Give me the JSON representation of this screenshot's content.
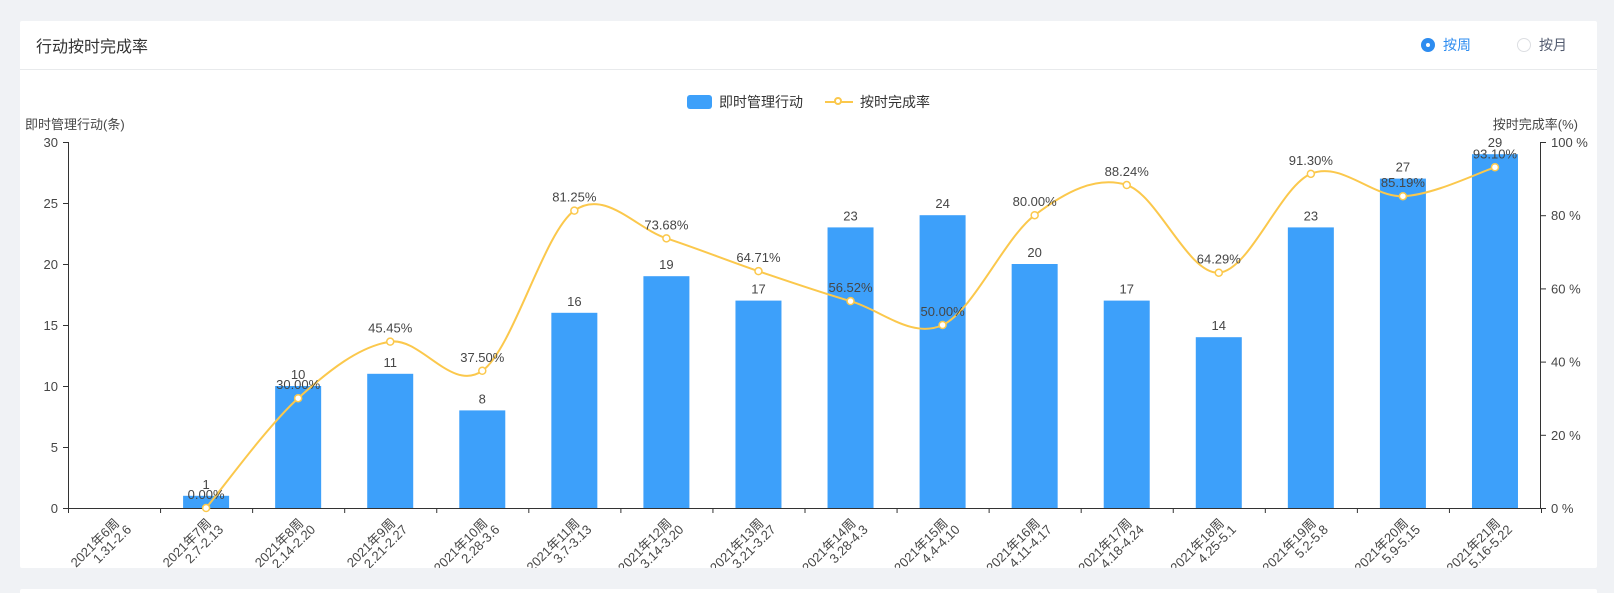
{
  "card": {
    "title": "行动按时完成率",
    "toggle": {
      "accent": "#2d8cf0",
      "options": [
        {
          "label": "按周",
          "selected": true
        },
        {
          "label": "按月",
          "selected": false
        }
      ]
    }
  },
  "chart_data": {
    "type": "bar",
    "title": "行动按时完成率",
    "categories": [
      [
        "2021年6周",
        "1.31-2.6"
      ],
      [
        "2021年7周",
        "2.7-2.13"
      ],
      [
        "2021年8周",
        "2.14-2.20"
      ],
      [
        "2021年9周",
        "2.21-2.27"
      ],
      [
        "2021年10周",
        "2.28-3.6"
      ],
      [
        "2021年11周",
        "3.7-3.13"
      ],
      [
        "2021年12周",
        "3.14-3.20"
      ],
      [
        "2021年13周",
        "3.21-3.27"
      ],
      [
        "2021年14周",
        "3.28-4.3"
      ],
      [
        "2021年15周",
        "4.4-4.10"
      ],
      [
        "2021年16周",
        "4.11-4.17"
      ],
      [
        "2021年17周",
        "4.18-4.24"
      ],
      [
        "2021年18周",
        "4.25-5.1"
      ],
      [
        "2021年19周",
        "5.2-5.8"
      ],
      [
        "2021年20周",
        "5.9-5.15"
      ],
      [
        "2021年21周",
        "5.16-5.22"
      ]
    ],
    "series": [
      {
        "name": "即时管理行动",
        "type": "bar",
        "color": "#3da0fa",
        "values": [
          null,
          1,
          10,
          11,
          8,
          16,
          19,
          17,
          23,
          24,
          20,
          17,
          14,
          23,
          27,
          29
        ]
      },
      {
        "name": "按时完成率",
        "type": "line",
        "color": "#fbc84c",
        "smooth": true,
        "values": [
          null,
          0,
          30,
          45.45,
          37.5,
          81.25,
          73.68,
          64.71,
          56.52,
          50,
          80,
          88.24,
          64.29,
          91.3,
          85.19,
          93.1
        ],
        "labels": [
          "",
          "0.00%",
          "30.00%",
          "45.45%",
          "37.50%",
          "81.25%",
          "73.68%",
          "64.71%",
          "56.52%",
          "50.00%",
          "80.00%",
          "88.24%",
          "64.29%",
          "91.30%",
          "85.19%",
          "93.10%"
        ]
      }
    ],
    "left_axis": {
      "name": "即时管理行动(条)",
      "min": 0,
      "max": 30,
      "tick_step": 5,
      "tick_labels": [
        "0",
        "5",
        "10",
        "15",
        "20",
        "25",
        "30"
      ]
    },
    "right_axis": {
      "name": "按时完成率(%)",
      "min": 0,
      "max": 100,
      "tick_step": 20,
      "tick_labels": [
        "0 %",
        "20 %",
        "40 %",
        "60 %",
        "80 %",
        "100 %"
      ]
    },
    "legend": [
      "即时管理行动",
      "按时完成率"
    ],
    "legend_position": "top-center",
    "grid": false,
    "label_color": "#464646",
    "axis_color": "#333333"
  }
}
